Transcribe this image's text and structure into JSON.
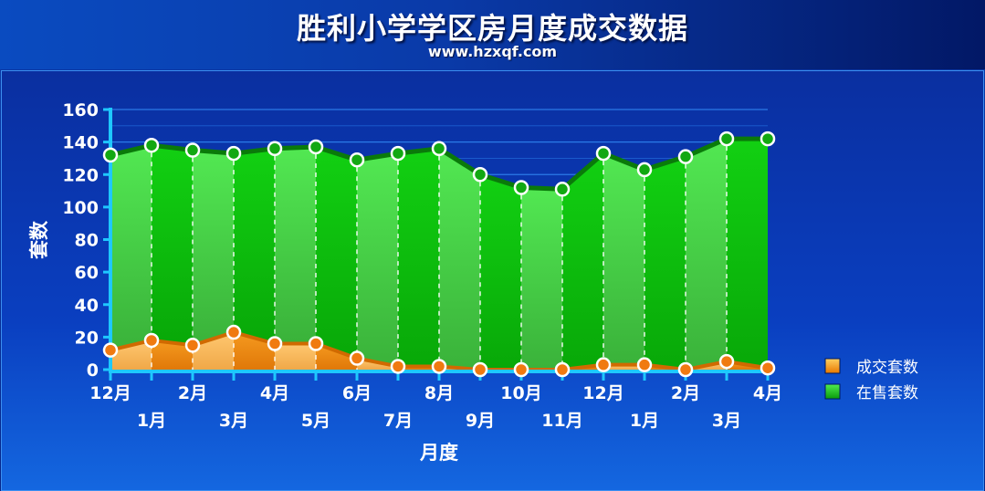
{
  "header": {
    "title": "胜利小学学区房月度成交数据",
    "subtitle": "www.hzxqf.com"
  },
  "chart_data": {
    "type": "area",
    "title": "胜利小学学区房月度成交数据",
    "subtitle": "www.hzxqf.com",
    "xlabel": "月度",
    "ylabel": "套数",
    "ylim": [
      0,
      160
    ],
    "yticks": [
      0,
      20,
      40,
      60,
      80,
      100,
      120,
      140,
      160
    ],
    "categories": [
      "12月",
      "1月",
      "2月",
      "3月",
      "4月",
      "5月",
      "6月",
      "7月",
      "8月",
      "9月",
      "10月",
      "11月",
      "12月",
      "1月",
      "2月",
      "3月",
      "4月"
    ],
    "series": [
      {
        "name": "成交套数",
        "color": "#f08a10",
        "values": [
          12,
          18,
          15,
          23,
          16,
          16,
          7,
          2,
          2,
          0,
          0,
          0,
          3,
          3,
          0,
          5,
          1
        ]
      },
      {
        "name": "在售套数",
        "color": "#10c010",
        "values": [
          132,
          138,
          135,
          133,
          136,
          137,
          129,
          133,
          136,
          120,
          112,
          111,
          133,
          123,
          131,
          142,
          142
        ]
      }
    ],
    "legend_position": "right",
    "grid": true
  }
}
